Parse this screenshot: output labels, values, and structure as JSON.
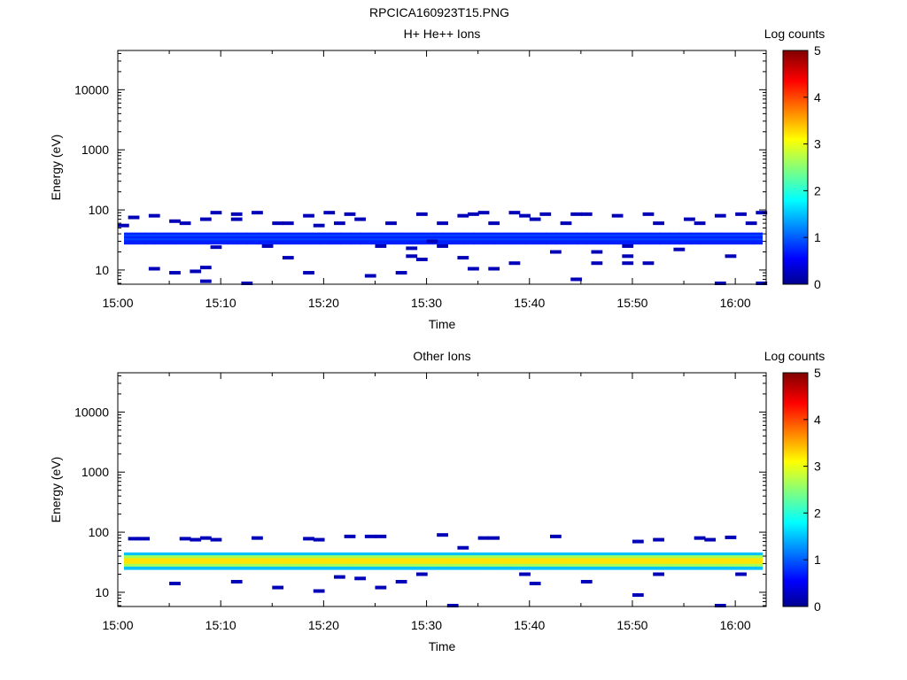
{
  "figure_title": "RPCICA160923T15.PNG",
  "chart_data": [
    {
      "type": "heatmap",
      "title": "H+ He++ Ions",
      "xlabel": "Time",
      "ylabel": "Energy (eV)",
      "x_tick_labels": [
        "15:00",
        "15:10",
        "15:20",
        "15:30",
        "15:40",
        "15:50",
        "16:00"
      ],
      "xlim": [
        "15:00",
        "16:03"
      ],
      "y_scale": "log",
      "ylim": [
        5.8,
        45000
      ],
      "y_tick_labels": [
        "10",
        "100",
        "1000",
        "10000"
      ],
      "colorbar": {
        "label": "Log counts",
        "range": [
          0,
          5
        ],
        "tick_labels": [
          "0",
          "1",
          "2",
          "3",
          "4",
          "5"
        ],
        "colormap": "jet"
      },
      "grid": false,
      "band": {
        "energy_low": 27,
        "energy_high": 42,
        "log_counts": 0.75
      },
      "scattered_bins": [
        [
          "15:00",
          55
        ],
        [
          "15:01",
          75
        ],
        [
          "15:03",
          80
        ],
        [
          "15:03",
          10.5
        ],
        [
          "15:05",
          65
        ],
        [
          "15:05",
          9
        ],
        [
          "15:06",
          60
        ],
        [
          "15:07",
          9.5
        ],
        [
          "15:08",
          70
        ],
        [
          "15:08",
          11
        ],
        [
          "15:08",
          6.5
        ],
        [
          "15:09",
          90
        ],
        [
          "15:09",
          24
        ],
        [
          "15:11",
          70
        ],
        [
          "15:11",
          85
        ],
        [
          "15:12",
          6
        ],
        [
          "15:13",
          90
        ],
        [
          "15:14",
          25
        ],
        [
          "15:15",
          60
        ],
        [
          "15:16",
          60
        ],
        [
          "15:16",
          16
        ],
        [
          "15:18",
          80
        ],
        [
          "15:18",
          9
        ],
        [
          "15:19",
          55
        ],
        [
          "15:20",
          90
        ],
        [
          "15:21",
          60
        ],
        [
          "15:22",
          85
        ],
        [
          "15:23",
          70
        ],
        [
          "15:24",
          8
        ],
        [
          "15:25",
          25
        ],
        [
          "15:26",
          60
        ],
        [
          "15:27",
          9
        ],
        [
          "15:28",
          23
        ],
        [
          "15:28",
          17
        ],
        [
          "15:29",
          85
        ],
        [
          "15:29",
          15
        ],
        [
          "15:30",
          30
        ],
        [
          "15:31",
          25
        ],
        [
          "15:31",
          60
        ],
        [
          "15:33",
          80
        ],
        [
          "15:33",
          16
        ],
        [
          "15:34",
          10.5
        ],
        [
          "15:34",
          85
        ],
        [
          "15:35",
          90
        ],
        [
          "15:36",
          10.5
        ],
        [
          "15:36",
          60
        ],
        [
          "15:38",
          13
        ],
        [
          "15:38",
          90
        ],
        [
          "15:39",
          80
        ],
        [
          "15:40",
          70
        ],
        [
          "15:41",
          85
        ],
        [
          "15:42",
          20
        ],
        [
          "15:43",
          60
        ],
        [
          "15:44",
          85
        ],
        [
          "15:44",
          7
        ],
        [
          "15:45",
          85
        ],
        [
          "15:46",
          20
        ],
        [
          "15:46",
          13
        ],
        [
          "15:48",
          80
        ],
        [
          "15:49",
          25
        ],
        [
          "15:49",
          13
        ],
        [
          "15:49",
          17
        ],
        [
          "15:51",
          85
        ],
        [
          "15:51",
          13
        ],
        [
          "15:52",
          60
        ],
        [
          "15:54",
          22
        ],
        [
          "15:55",
          70
        ],
        [
          "15:56",
          60
        ],
        [
          "15:58",
          80
        ],
        [
          "15:58",
          6
        ],
        [
          "15:59",
          17
        ],
        [
          "16:00",
          85
        ],
        [
          "16:01",
          60
        ],
        [
          "16:02",
          90
        ],
        [
          "16:02",
          6
        ]
      ]
    },
    {
      "type": "heatmap",
      "title": "Other Ions",
      "xlabel": "Time",
      "ylabel": "Energy (eV)",
      "x_tick_labels": [
        "15:00",
        "15:10",
        "15:20",
        "15:30",
        "15:40",
        "15:50",
        "16:00"
      ],
      "xlim": [
        "15:00",
        "16:03"
      ],
      "y_scale": "log",
      "ylim": [
        5.8,
        45000
      ],
      "y_tick_labels": [
        "10",
        "100",
        "1000",
        "10000"
      ],
      "colorbar": {
        "label": "Log counts",
        "range": [
          0,
          5
        ],
        "tick_labels": [
          "0",
          "1",
          "2",
          "3",
          "4",
          "5"
        ],
        "colormap": "jet"
      },
      "grid": false,
      "band": {
        "energy_low": 24,
        "energy_high": 46,
        "log_counts_edge": 1.5,
        "log_counts_peak": 3.3
      },
      "scattered_bins": [
        [
          "15:01",
          78
        ],
        [
          "15:02",
          78
        ],
        [
          "15:05",
          14
        ],
        [
          "15:06",
          78
        ],
        [
          "15:07",
          75
        ],
        [
          "15:08",
          80
        ],
        [
          "15:09",
          75
        ],
        [
          "15:11",
          15
        ],
        [
          "15:13",
          80
        ],
        [
          "15:15",
          12
        ],
        [
          "15:18",
          78
        ],
        [
          "15:19",
          10.5
        ],
        [
          "15:19",
          75
        ],
        [
          "15:21",
          18
        ],
        [
          "15:22",
          85
        ],
        [
          "15:23",
          17
        ],
        [
          "15:24",
          85
        ],
        [
          "15:25",
          12
        ],
        [
          "15:25",
          85
        ],
        [
          "15:27",
          15
        ],
        [
          "15:29",
          20
        ],
        [
          "15:31",
          90
        ],
        [
          "15:32",
          6
        ],
        [
          "15:33",
          55
        ],
        [
          "15:35",
          80
        ],
        [
          "15:36",
          80
        ],
        [
          "15:39",
          20
        ],
        [
          "15:40",
          14
        ],
        [
          "15:42",
          85
        ],
        [
          "15:45",
          15
        ],
        [
          "15:50",
          9
        ],
        [
          "15:50",
          70
        ],
        [
          "15:52",
          75
        ],
        [
          "15:52",
          20
        ],
        [
          "15:56",
          80
        ],
        [
          "15:57",
          75
        ],
        [
          "15:58",
          6
        ],
        [
          "15:59",
          82
        ],
        [
          "16:00",
          20
        ]
      ]
    }
  ]
}
